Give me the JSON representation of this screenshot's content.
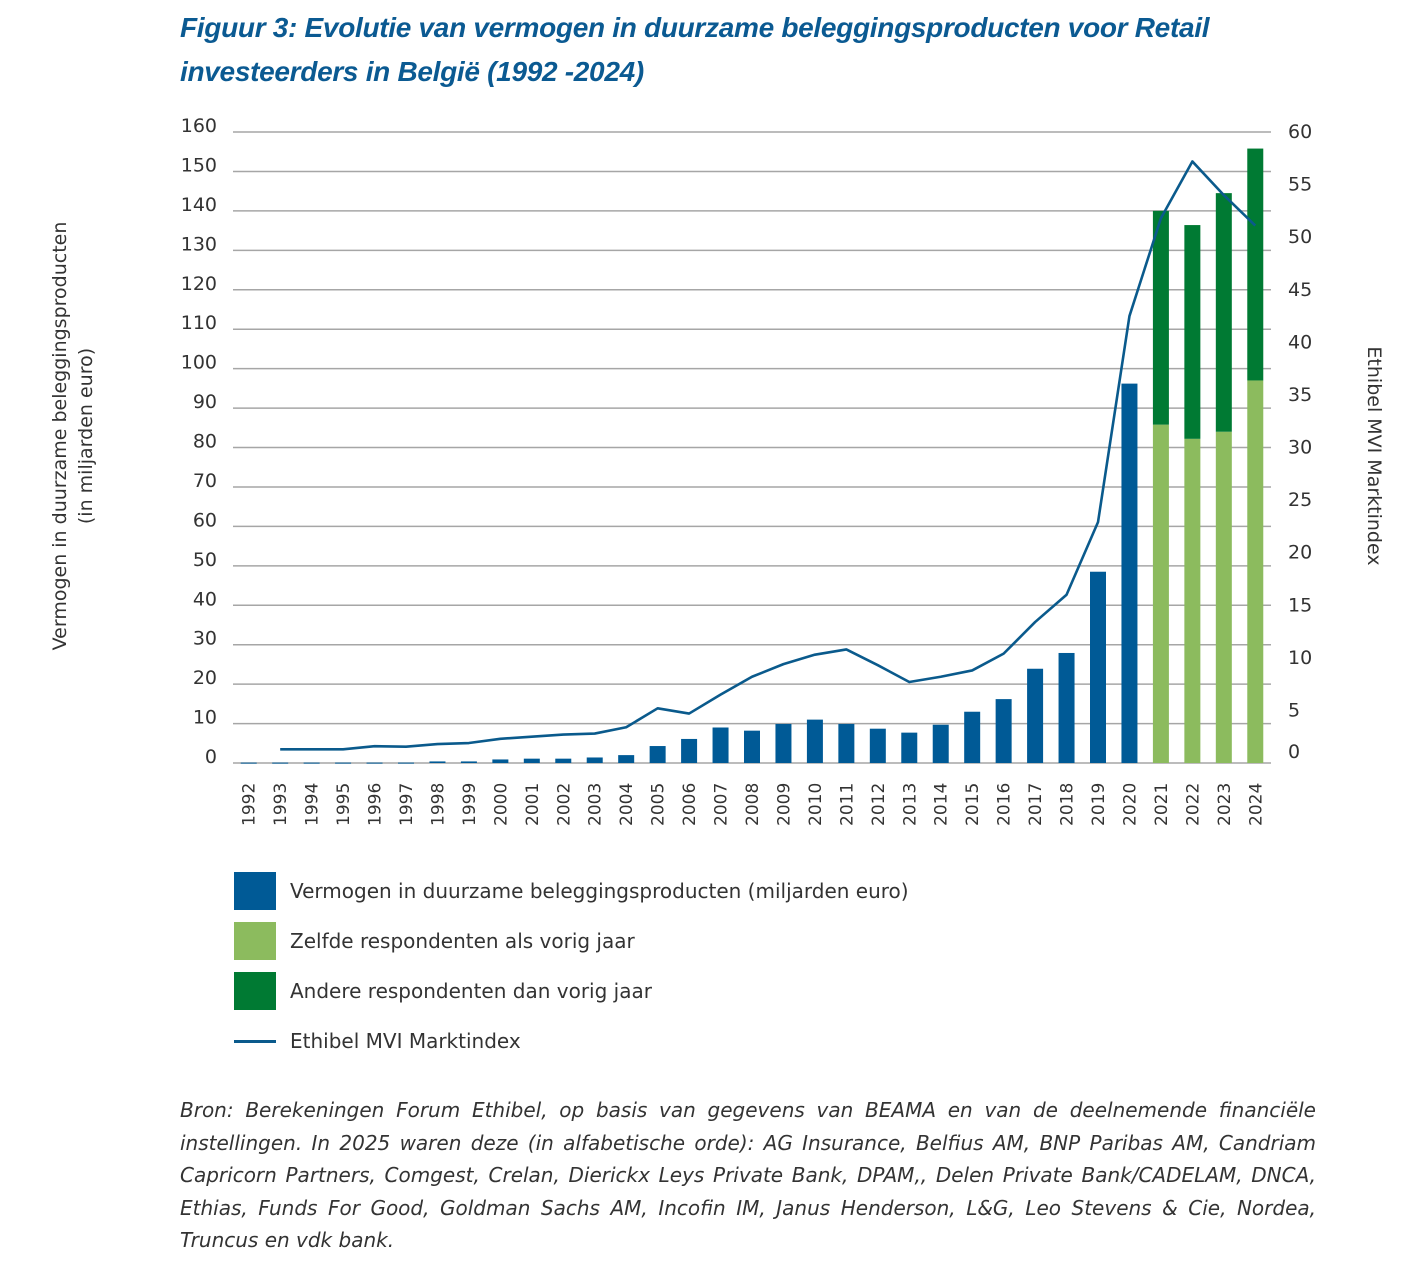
{
  "title": "Figuur 3: Evolutie van vermogen in duurzame beleggingsproducten voor Retail investeerders in België (1992 -2024)",
  "colors": {
    "title": "#0b5a92",
    "vermogen": "#005a96",
    "zelfde": "#8cbb5e",
    "andere": "#007a33",
    "index_line": "#0a5a8c",
    "grid": "#a6a6a6"
  },
  "legend": [
    {
      "key": "vermogen",
      "label": "Vermogen in duurzame beleggingsproducten (miljarden euro)",
      "type": "box"
    },
    {
      "key": "zelfde",
      "label": "Zelfde respondenten als vorig jaar",
      "type": "box"
    },
    {
      "key": "andere",
      "label": "Andere respondenten dan vorig jaar",
      "type": "box"
    },
    {
      "key": "index_line",
      "label": "Ethibel MVI Marktindex",
      "type": "line"
    }
  ],
  "source": "Bron: Berekeningen Forum Ethibel, op basis van gegevens van BEAMA en van de deelnemende financiële instellingen. In 2025 waren deze (in alfabetische orde): AG Insurance, Belfius AM, BNP Paribas AM, Candriam Capricorn Partners,  Comgest, Crelan, Dierickx Leys Private Bank, DPAM,, Delen Private Bank/CADELAM, DNCA, Ethias, Funds For Good, Goldman Sachs AM, Incofin IM, Janus Henderson, L&G, Leo Stevens & Cie, Nordea, Truncus en vdk bank.",
  "chart_data": {
    "type": "bar",
    "title": "Figuur 3: Evolutie van vermogen in duurzame beleggingsproducten voor Retail investeerders in België (1992 -2024)",
    "xlabel": "",
    "ylabel": "Vermogen in duurzame beleggingsproducten (in miljarden euro)",
    "ylabel_lines": [
      "Vermogen in duurzame beleggingsproducten",
      "(in miljarden euro)"
    ],
    "y2label": "Ethibel MVI Marktindex",
    "ylim": [
      0,
      160
    ],
    "y2lim": [
      0,
      60
    ],
    "yticks": [
      0,
      10,
      20,
      30,
      40,
      50,
      60,
      70,
      80,
      90,
      100,
      110,
      120,
      130,
      140,
      150,
      160
    ],
    "y2ticks": [
      0,
      5,
      10,
      15,
      20,
      25,
      30,
      35,
      40,
      45,
      50,
      55,
      60
    ],
    "grid": true,
    "legend_position": "bottom",
    "categories": [
      "1992",
      "1993",
      "1994",
      "1995",
      "1996",
      "1997",
      "1998",
      "1999",
      "2000",
      "2001",
      "2002",
      "2003",
      "2004",
      "2005",
      "2006",
      "2007",
      "2008",
      "2009",
      "2010",
      "2011",
      "2012",
      "2013",
      "2014",
      "2015",
      "2016",
      "2017",
      "2018",
      "2019",
      "2020",
      "2021",
      "2022",
      "2023",
      "2024"
    ],
    "series": [
      {
        "name": "Vermogen in duurzame beleggingsproducten (miljarden euro)",
        "type": "bar",
        "axis": "left",
        "color_key": "vermogen",
        "values": [
          0.1,
          0.1,
          0.1,
          0.1,
          0.1,
          0.1,
          0.4,
          0.4,
          0.9,
          1.1,
          1.1,
          1.4,
          2.0,
          4.3,
          6.1,
          9.0,
          8.2,
          9.9,
          11.0,
          9.9,
          8.7,
          7.7,
          9.7,
          13.0,
          16.2,
          23.9,
          27.9,
          48.5,
          96.2,
          null,
          null,
          null,
          null
        ]
      },
      {
        "name": "Zelfde respondenten als vorig jaar",
        "type": "bar-stacked",
        "axis": "left",
        "color_key": "zelfde",
        "values": [
          null,
          null,
          null,
          null,
          null,
          null,
          null,
          null,
          null,
          null,
          null,
          null,
          null,
          null,
          null,
          null,
          null,
          null,
          null,
          null,
          null,
          null,
          null,
          null,
          null,
          null,
          null,
          null,
          null,
          85.8,
          82.2,
          84.0,
          97.0
        ]
      },
      {
        "name": "Andere respondenten dan vorig jaar",
        "type": "bar-stacked",
        "axis": "left",
        "color_key": "andere",
        "values": [
          null,
          null,
          null,
          null,
          null,
          null,
          null,
          null,
          null,
          null,
          null,
          null,
          null,
          null,
          null,
          null,
          null,
          null,
          null,
          null,
          null,
          null,
          null,
          null,
          null,
          null,
          null,
          null,
          null,
          54.2,
          54.2,
          60.5,
          58.8
        ]
      },
      {
        "name": "Ethibel MVI Marktindex",
        "type": "line",
        "axis": "right",
        "color_key": "index_line",
        "values": [
          null,
          1.3,
          1.3,
          1.3,
          1.6,
          1.55,
          1.8,
          1.9,
          2.3,
          2.5,
          2.7,
          2.8,
          3.4,
          5.2,
          4.7,
          6.5,
          8.2,
          9.4,
          10.3,
          10.8,
          9.3,
          7.7,
          8.2,
          8.8,
          10.4,
          13.4,
          16.0,
          22.9,
          42.5,
          51.8,
          57.2,
          54.0,
          51.1
        ]
      }
    ]
  }
}
